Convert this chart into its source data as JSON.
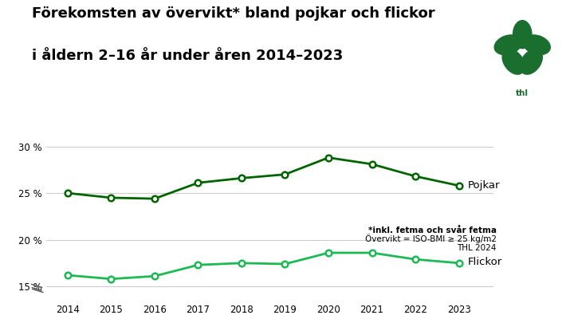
{
  "title_line1": "Förekomsten av övervikt* bland pojkar och flickor",
  "title_line2": "i åldern 2–16 år under åren 2014–2023",
  "years": [
    2014,
    2015,
    2016,
    2017,
    2018,
    2019,
    2020,
    2021,
    2022,
    2023
  ],
  "pojkar": [
    25.0,
    24.5,
    24.4,
    26.1,
    26.6,
    27.0,
    28.8,
    28.1,
    26.8,
    25.8
  ],
  "flickor": [
    16.2,
    15.8,
    16.1,
    17.3,
    17.5,
    17.4,
    18.6,
    18.6,
    17.9,
    17.5
  ],
  "line_color_pojkar": "#006400",
  "line_color_flickor": "#1db954",
  "bg_color": "#ffffff",
  "grid_color": "#cccccc",
  "annotation_bold": "*inkl. fetma och svår fetma",
  "annotation_line2": "Övervikt = ISO-BMI ≥ 25 kg/m2",
  "annotation_line3": "THL 2024",
  "logo_color": "#1a6e2e",
  "title_fontsize": 13,
  "label_fontsize": 9.5,
  "tick_fontsize": 8.5,
  "annotation_fontsize": 7.5,
  "ylim": [
    13.5,
    31.5
  ],
  "yticks": [
    15,
    20,
    25,
    30
  ]
}
